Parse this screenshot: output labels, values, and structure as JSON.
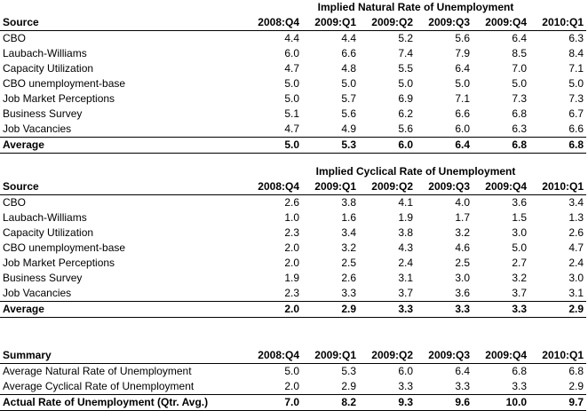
{
  "columns": [
    "2008:Q4",
    "2009:Q1",
    "2009:Q2",
    "2009:Q3",
    "2009:Q4",
    "2010:Q1"
  ],
  "natural": {
    "title": "Implied Natural Rate of Unemployment",
    "source_label": "Source",
    "rows": [
      {
        "label": "CBO",
        "values": [
          "4.4",
          "4.4",
          "5.2",
          "5.6",
          "6.4",
          "6.3"
        ]
      },
      {
        "label": "Laubach-Williams",
        "values": [
          "6.0",
          "6.6",
          "7.4",
          "7.9",
          "8.5",
          "8.4"
        ]
      },
      {
        "label": "Capacity Utilization",
        "values": [
          "4.7",
          "4.8",
          "5.5",
          "6.4",
          "7.0",
          "7.1"
        ]
      },
      {
        "label": "CBO unemployment-base",
        "values": [
          "5.0",
          "5.0",
          "5.0",
          "5.0",
          "5.0",
          "5.0"
        ]
      },
      {
        "label": "Job Market Perceptions",
        "values": [
          "5.0",
          "5.7",
          "6.9",
          "7.1",
          "7.3",
          "7.3"
        ]
      },
      {
        "label": "Business Survey",
        "values": [
          "5.1",
          "5.6",
          "6.2",
          "6.6",
          "6.8",
          "6.7"
        ]
      },
      {
        "label": "Job Vacancies",
        "values": [
          "4.7",
          "4.9",
          "5.6",
          "6.0",
          "6.3",
          "6.6"
        ]
      }
    ],
    "average": {
      "label": "Average",
      "values": [
        "5.0",
        "5.3",
        "6.0",
        "6.4",
        "6.8",
        "6.8"
      ]
    }
  },
  "cyclical": {
    "title": "Implied Cyclical Rate of Unemployment",
    "source_label": "Source",
    "rows": [
      {
        "label": "CBO",
        "values": [
          "2.6",
          "3.8",
          "4.1",
          "4.0",
          "3.6",
          "3.4"
        ]
      },
      {
        "label": "Laubach-Williams",
        "values": [
          "1.0",
          "1.6",
          "1.9",
          "1.7",
          "1.5",
          "1.3"
        ]
      },
      {
        "label": "Capacity Utilization",
        "values": [
          "2.3",
          "3.4",
          "3.8",
          "3.2",
          "3.0",
          "2.6"
        ]
      },
      {
        "label": "CBO unemployment-base",
        "values": [
          "2.0",
          "3.2",
          "4.3",
          "4.6",
          "5.0",
          "4.7"
        ]
      },
      {
        "label": "Job Market Perceptions",
        "values": [
          "2.0",
          "2.5",
          "2.4",
          "2.5",
          "2.7",
          "2.4"
        ]
      },
      {
        "label": "Business Survey",
        "values": [
          "1.9",
          "2.6",
          "3.1",
          "3.0",
          "3.2",
          "3.0"
        ]
      },
      {
        "label": "Job Vacancies",
        "values": [
          "2.3",
          "3.3",
          "3.7",
          "3.6",
          "3.7",
          "3.1"
        ]
      }
    ],
    "average": {
      "label": "Average",
      "values": [
        "2.0",
        "2.9",
        "3.3",
        "3.3",
        "3.3",
        "2.9"
      ]
    }
  },
  "summary": {
    "label": "Summary",
    "rows": [
      {
        "label": "Average Natural Rate of Unemployment",
        "values": [
          "5.0",
          "5.3",
          "6.0",
          "6.4",
          "6.8",
          "6.8"
        ]
      },
      {
        "label": "Average Cyclical Rate of Unemployment",
        "values": [
          "2.0",
          "2.9",
          "3.3",
          "3.3",
          "3.3",
          "2.9"
        ]
      }
    ],
    "actual": {
      "label": "Actual Rate of Unemployment (Qtr. Avg.)",
      "values": [
        "7.0",
        "8.2",
        "9.3",
        "9.6",
        "10.0",
        "9.7"
      ]
    }
  }
}
